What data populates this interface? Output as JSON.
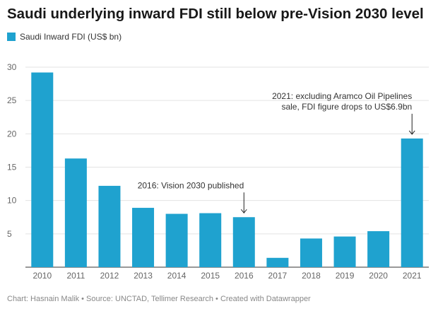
{
  "chart_data": {
    "type": "bar",
    "title": "Saudi underlying inward FDI still below pre-Vision 2030 level",
    "xlabel": "",
    "ylabel": "",
    "ylim": [
      0,
      30
    ],
    "yticks": [
      5,
      10,
      15,
      20,
      25,
      30
    ],
    "grid": true,
    "legend": "top-left",
    "categories": [
      "2010",
      "2011",
      "2012",
      "2013",
      "2014",
      "2015",
      "2016",
      "2017",
      "2018",
      "2019",
      "2020",
      "2021"
    ],
    "series": [
      {
        "name": "Saudi Inward FDI (US$ bn)",
        "color": "#1fa2cf",
        "values": [
          29.2,
          16.3,
          12.2,
          8.9,
          8.0,
          8.1,
          7.5,
          1.4,
          4.3,
          4.6,
          5.4,
          19.3
        ]
      }
    ],
    "annotations": [
      {
        "category": "2016",
        "lines": [
          "2016: Vision 2030 published"
        ]
      },
      {
        "category": "2021",
        "lines": [
          "2021: excluding Aramco Oil Pipelines",
          "sale, FDI figure drops to US$6.9bn"
        ]
      }
    ]
  },
  "footer": {
    "credit": "Chart: Hasnain Malik • Source: UNCTAD, Tellimer Research • Created with Datawrapper"
  },
  "colors": {
    "bar": "#1fa2cf",
    "grid": "#e3e3e3",
    "axis_text": "#666666",
    "annotation_text": "#333333"
  }
}
